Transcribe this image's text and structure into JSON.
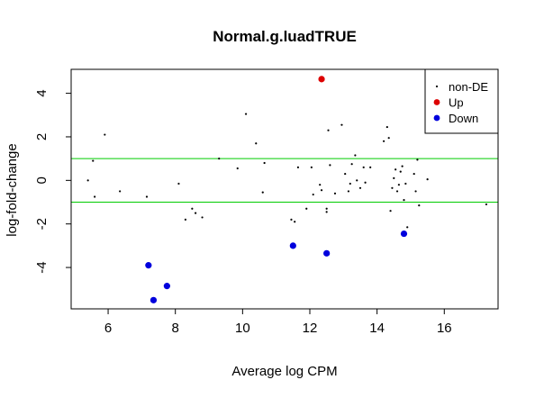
{
  "chart_data": {
    "type": "scatter",
    "title": "Normal.g.luadTRUE",
    "xlabel": "Average log CPM",
    "ylabel": "log-fold-change",
    "xlim": [
      4.9,
      17.6
    ],
    "ylim": [
      -5.9,
      5.1
    ],
    "x_ticks": [
      6,
      8,
      10,
      12,
      14,
      16
    ],
    "y_ticks": [
      -4,
      -2,
      0,
      2,
      4
    ],
    "threshold_lines": {
      "values": [
        1,
        -1
      ],
      "color": "#00cc00"
    },
    "grid": false,
    "legend": {
      "position": "top-right",
      "entries": [
        {
          "name": "non-DE",
          "color": "#000000",
          "marker": "small-dot"
        },
        {
          "name": "Up",
          "color": "#dd0000",
          "marker": "circle"
        },
        {
          "name": "Down",
          "color": "#0000dd",
          "marker": "circle"
        }
      ]
    },
    "series": [
      {
        "name": "non-DE",
        "color": "#000000",
        "points": [
          [
            5.4,
            0.0
          ],
          [
            5.55,
            0.9
          ],
          [
            5.6,
            -0.75
          ],
          [
            5.9,
            2.1
          ],
          [
            6.35,
            -0.5
          ],
          [
            7.15,
            -0.75
          ],
          [
            8.1,
            -0.15
          ],
          [
            8.3,
            -1.8
          ],
          [
            8.5,
            -1.3
          ],
          [
            8.6,
            -1.5
          ],
          [
            8.8,
            -1.7
          ],
          [
            9.3,
            1.0
          ],
          [
            9.85,
            0.55
          ],
          [
            10.1,
            3.05
          ],
          [
            10.4,
            1.7
          ],
          [
            10.6,
            -0.55
          ],
          [
            10.65,
            0.8
          ],
          [
            11.45,
            -1.8
          ],
          [
            11.55,
            -1.9
          ],
          [
            11.65,
            0.6
          ],
          [
            11.9,
            -1.3
          ],
          [
            12.05,
            0.6
          ],
          [
            12.1,
            -0.65
          ],
          [
            12.3,
            -0.2
          ],
          [
            12.35,
            -0.45
          ],
          [
            12.5,
            -1.3
          ],
          [
            12.5,
            -1.45
          ],
          [
            12.55,
            2.3
          ],
          [
            12.6,
            0.7
          ],
          [
            12.75,
            -0.6
          ],
          [
            12.95,
            2.55
          ],
          [
            13.05,
            0.3
          ],
          [
            13.15,
            -0.5
          ],
          [
            13.2,
            -0.15
          ],
          [
            13.25,
            0.75
          ],
          [
            13.35,
            1.15
          ],
          [
            13.4,
            0.0
          ],
          [
            13.5,
            -0.35
          ],
          [
            13.6,
            0.6
          ],
          [
            13.65,
            -0.1
          ],
          [
            13.8,
            0.6
          ],
          [
            14.2,
            1.8
          ],
          [
            14.3,
            2.45
          ],
          [
            14.35,
            1.95
          ],
          [
            14.4,
            -1.4
          ],
          [
            14.45,
            -0.35
          ],
          [
            14.5,
            0.1
          ],
          [
            14.55,
            0.5
          ],
          [
            14.6,
            -0.5
          ],
          [
            14.65,
            -0.2
          ],
          [
            14.7,
            0.4
          ],
          [
            14.75,
            0.65
          ],
          [
            14.8,
            -0.9
          ],
          [
            14.85,
            -0.15
          ],
          [
            14.9,
            -2.15
          ],
          [
            15.1,
            0.3
          ],
          [
            15.15,
            -0.5
          ],
          [
            15.2,
            0.95
          ],
          [
            15.25,
            -1.15
          ],
          [
            15.5,
            0.05
          ],
          [
            17.25,
            -1.1
          ]
        ]
      },
      {
        "name": "Up",
        "color": "#dd0000",
        "points": [
          [
            12.35,
            4.65
          ]
        ]
      },
      {
        "name": "Down",
        "color": "#0000dd",
        "points": [
          [
            7.2,
            -3.9
          ],
          [
            7.35,
            -5.5
          ],
          [
            7.75,
            -4.85
          ],
          [
            11.5,
            -3.0
          ],
          [
            12.5,
            -3.35
          ],
          [
            14.8,
            -2.45
          ]
        ]
      }
    ]
  }
}
